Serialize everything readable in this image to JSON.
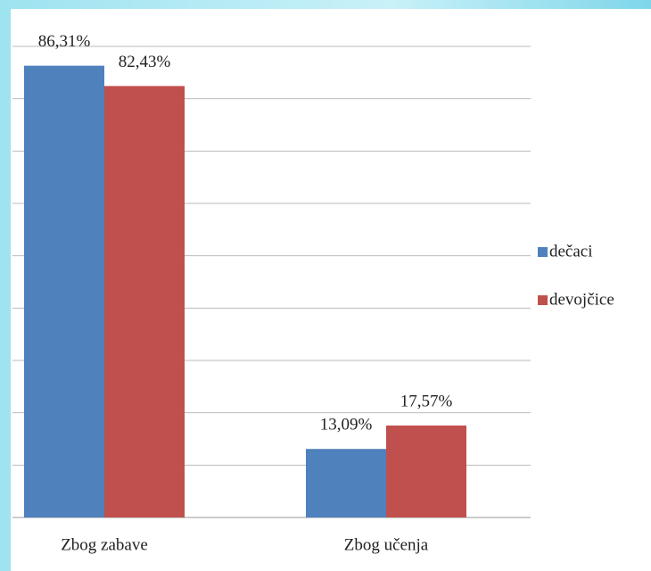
{
  "chart_data": {
    "type": "bar",
    "categories": [
      "Zbog zabave",
      "Zbog učenja"
    ],
    "series": [
      {
        "name": "dečaci",
        "color": "#4f81bd",
        "values": [
          86.31,
          13.09
        ],
        "value_labels": [
          "86,31%",
          "13,09%"
        ]
      },
      {
        "name": "devojčice",
        "color": "#c0504d",
        "values": [
          82.43,
          17.57
        ],
        "value_labels": [
          "82,43%",
          "17,57%"
        ]
      }
    ],
    "ylim": [
      0,
      90
    ],
    "yticks": [
      0,
      10,
      20,
      30,
      40,
      50,
      60,
      70,
      80,
      90
    ],
    "grid": true,
    "legend": "right"
  }
}
